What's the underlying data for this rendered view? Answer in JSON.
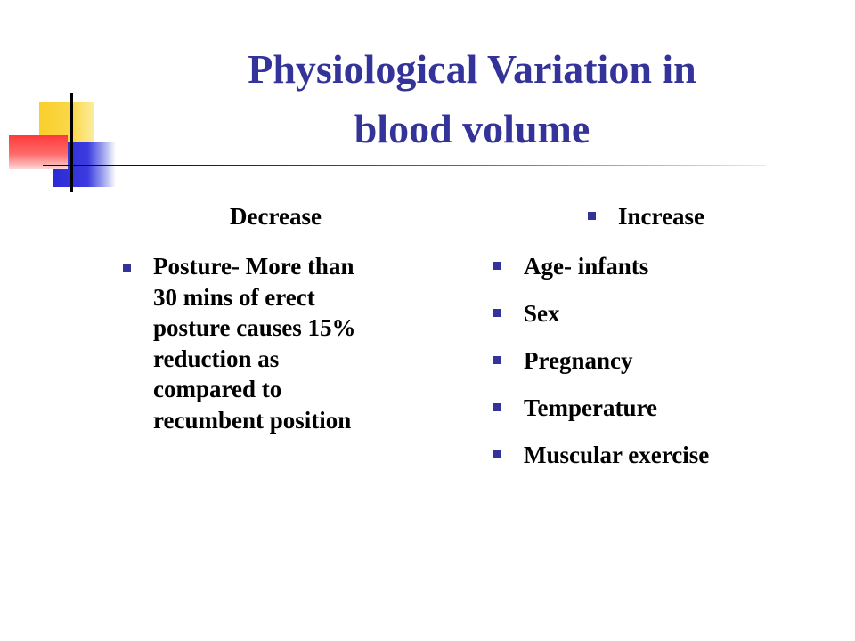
{
  "slide": {
    "title_line1": "Physiological Variation in",
    "title_line2": "blood volume",
    "left": {
      "heading": "Decrease",
      "items": [
        {
          "line1": "Posture- More than",
          "line2": "30 mins of erect",
          "line3": "posture causes 15%",
          "line4": "reduction as",
          "line5": "compared to",
          "line6": "recumbent position"
        }
      ]
    },
    "right": {
      "heading": "Increase",
      "items": [
        "Age- infants",
        "Sex",
        "Pregnancy",
        "Temperature",
        "Muscular exercise"
      ]
    }
  },
  "colors": {
    "title": "#333399",
    "bullet": "#333399",
    "text": "#000000"
  }
}
